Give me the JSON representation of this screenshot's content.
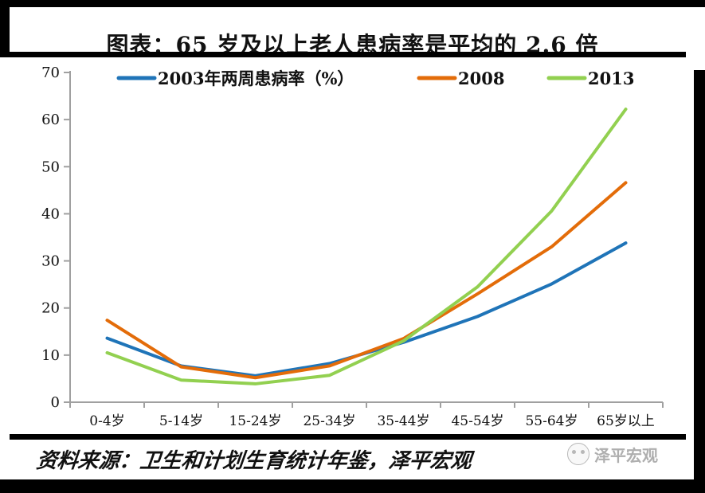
{
  "header": {
    "title": "图表：65 岁及以上老人患病率是平均的 2.6 倍"
  },
  "chart_data": {
    "type": "line",
    "title": "",
    "categories": [
      "0-4岁",
      "5-14岁",
      "15-24岁",
      "25-34岁",
      "35-44岁",
      "45-54岁",
      "55-64岁",
      "65岁以上"
    ],
    "series": [
      {
        "name": "2003年两周患病率（%）",
        "color": "#1F74B8",
        "values": [
          13.6,
          7.7,
          5.6,
          8.2,
          12.7,
          18.2,
          25.1,
          33.8
        ]
      },
      {
        "name": "2008",
        "color": "#E36C09",
        "values": [
          17.4,
          7.5,
          5.2,
          7.7,
          13.5,
          23.0,
          33.0,
          46.6
        ]
      },
      {
        "name": "2013",
        "color": "#92D050",
        "values": [
          10.5,
          4.7,
          3.9,
          5.7,
          13.0,
          24.5,
          40.6,
          62.2
        ]
      }
    ],
    "xlabel": "",
    "ylabel": "",
    "ylim": [
      0,
      70
    ],
    "ytick_step": 10,
    "yticks": [
      0,
      10,
      20,
      30,
      40,
      50,
      60,
      70
    ],
    "grid": false,
    "legend_position": "top",
    "axis_color": "#A0A0A0"
  },
  "footer": {
    "source": "资料来源：卫生和计划生育统计年鉴，泽平宏观"
  },
  "watermark": {
    "text": "泽平宏观",
    "logo": "panda-logo-icon"
  }
}
